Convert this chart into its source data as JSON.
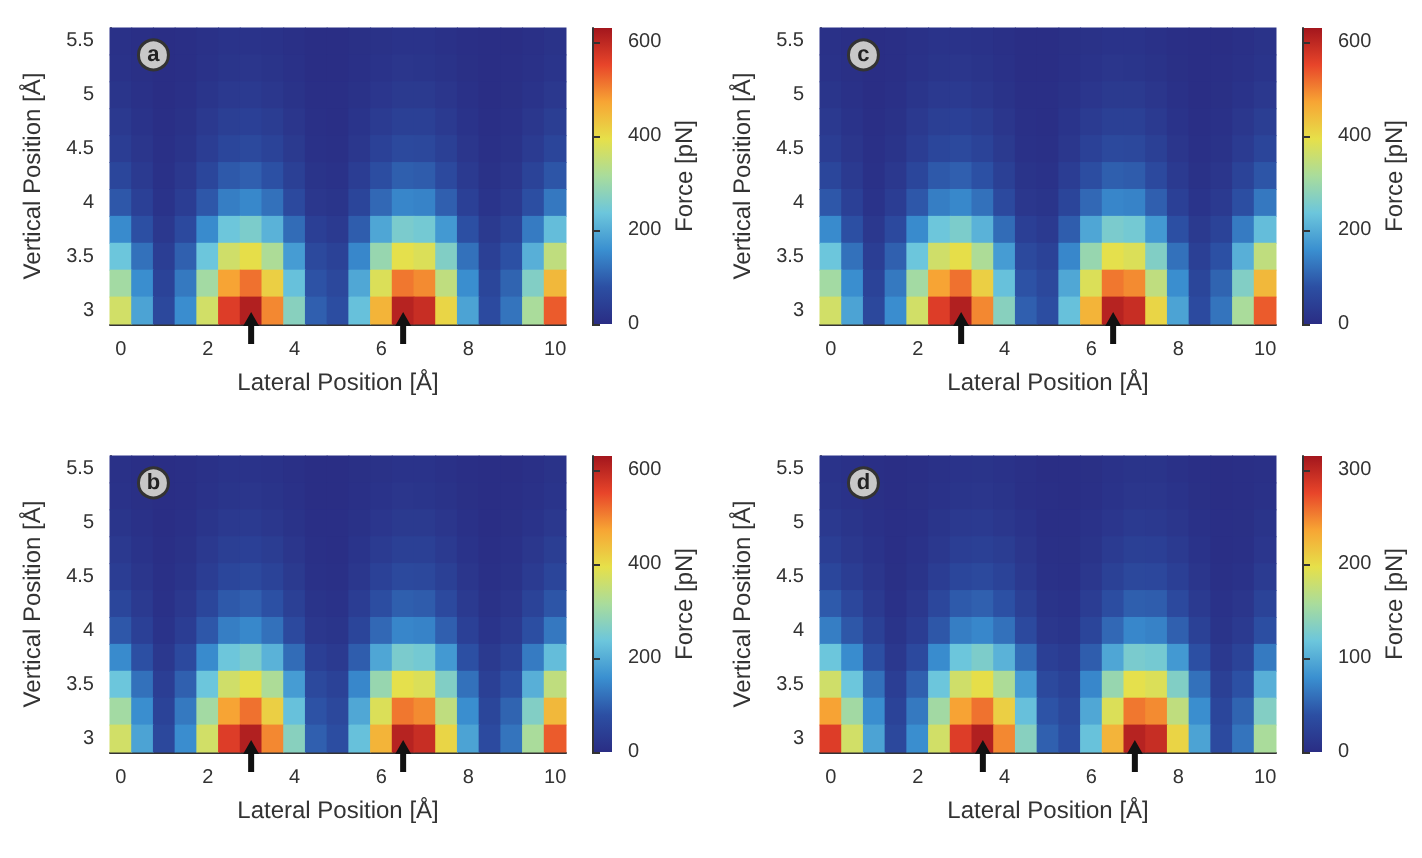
{
  "chart_data": [
    {
      "type": "heatmap",
      "xlabel": "Lateral Position [Å]",
      "ylabel": "Vertical Position [Å]",
      "clabel": "Force [pN]",
      "annotations": [
        "a"
      ],
      "categories": [
        "0",
        null,
        null,
        null,
        "2",
        null,
        null,
        null,
        "4",
        null,
        null,
        null,
        "6",
        null,
        null,
        null,
        "8",
        null,
        null,
        null,
        "10"
      ],
      "y_categories": [
        "5.5",
        null,
        "5",
        null,
        "4.5",
        null,
        "4",
        null,
        "3.5",
        null,
        "3"
      ],
      "clim": [
        0,
        630
      ],
      "cticks": [
        0,
        200,
        400,
        600
      ],
      "cells": [
        [
          9,
          5,
          2,
          4,
          9,
          14,
          15,
          12,
          7,
          2,
          2,
          6,
          11,
          15,
          14,
          10,
          5,
          2,
          3,
          8,
          13
        ],
        [
          12,
          6,
          2,
          5,
          12,
          18,
          20,
          16,
          9,
          3,
          2,
          7,
          15,
          20,
          19,
          13,
          6,
          2,
          4,
          10,
          17
        ],
        [
          18,
          9,
          3,
          8,
          18,
          27,
          30,
          24,
          13,
          5,
          4,
          11,
          22,
          29,
          29,
          20,
          9,
          3,
          6,
          15,
          26
        ],
        [
          27,
          14,
          5,
          11,
          27,
          41,
          45,
          36,
          20,
          7,
          5,
          17,
          33,
          44,
          43,
          30,
          14,
          5,
          9,
          23,
          39
        ],
        [
          38,
          20,
          7,
          16,
          38,
          59,
          64,
          52,
          29,
          10,
          8,
          24,
          47,
          64,
          62,
          43,
          20,
          7,
          13,
          33,
          56
        ],
        [
          59,
          30,
          10,
          25,
          59,
          91,
          99,
          80,
          44,
          16,
          12,
          37,
          73,
          98,
          95,
          66,
          30,
          11,
          20,
          51,
          86
        ],
        [
          89,
          45,
          15,
          38,
          89,
          137,
          149,
          120,
          66,
          24,
          18,
          56,
          110,
          147,
          143,
          99,
          45,
          17,
          30,
          77,
          129
        ],
        [
          153,
          78,
          26,
          65,
          153,
          237,
          257,
          208,
          114,
          42,
          31,
          96,
          190,
          255,
          247,
          172,
          78,
          29,
          52,
          133,
          224
        ],
        [
          236,
          120,
          40,
          100,
          236,
          364,
          396,
          320,
          176,
          64,
          48,
          148,
          292,
          392,
          380,
          264,
          120,
          44,
          80,
          204,
          344
        ],
        [
          307,
          156,
          52,
          130,
          307,
          473,
          515,
          416,
          229,
          83,
          62,
          192,
          380,
          510,
          494,
          343,
          156,
          57,
          104,
          265,
          447
        ],
        [
          366,
          186,
          62,
          155,
          366,
          564,
          614,
          496,
          273,
          99,
          74,
          229,
          453,
          608,
          589,
          409,
          186,
          68,
          124,
          316,
          533
        ]
      ]
    },
    {
      "type": "heatmap",
      "xlabel": "Lateral Position [Å]",
      "ylabel": "Vertical Position [Å]",
      "clabel": "Force [pN]",
      "annotations": [
        "c"
      ],
      "categories": [
        "0",
        null,
        null,
        null,
        "2",
        null,
        null,
        null,
        "4",
        null,
        null,
        null,
        "6",
        null,
        null,
        null,
        "8",
        null,
        null,
        null,
        "10"
      ],
      "y_categories": [
        "5.5",
        null,
        "5",
        null,
        "4.5",
        null,
        "4",
        null,
        "3.5",
        null,
        "3"
      ],
      "clim": [
        0,
        630
      ],
      "cticks": [
        0,
        200,
        400,
        600
      ],
      "cells": [
        [
          9,
          5,
          2,
          4,
          9,
          14,
          15,
          12,
          7,
          2,
          2,
          6,
          11,
          15,
          14,
          10,
          5,
          2,
          3,
          8,
          13
        ],
        [
          12,
          6,
          2,
          5,
          12,
          18,
          20,
          16,
          9,
          3,
          2,
          7,
          15,
          20,
          19,
          13,
          6,
          2,
          4,
          10,
          17
        ],
        [
          18,
          9,
          3,
          8,
          18,
          27,
          30,
          24,
          13,
          5,
          4,
          11,
          22,
          29,
          29,
          20,
          9,
          3,
          6,
          15,
          26
        ],
        [
          27,
          14,
          5,
          11,
          27,
          41,
          45,
          36,
          20,
          7,
          5,
          17,
          33,
          44,
          43,
          30,
          14,
          5,
          9,
          23,
          39
        ],
        [
          38,
          20,
          7,
          16,
          38,
          59,
          64,
          52,
          29,
          10,
          8,
          24,
          47,
          64,
          62,
          43,
          20,
          7,
          13,
          33,
          56
        ],
        [
          59,
          30,
          10,
          25,
          59,
          91,
          99,
          80,
          44,
          16,
          12,
          37,
          73,
          98,
          95,
          66,
          30,
          11,
          20,
          51,
          86
        ],
        [
          89,
          45,
          15,
          38,
          89,
          137,
          149,
          120,
          66,
          24,
          18,
          56,
          110,
          147,
          143,
          99,
          45,
          17,
          30,
          77,
          129
        ],
        [
          153,
          78,
          26,
          65,
          153,
          237,
          257,
          208,
          114,
          42,
          31,
          96,
          190,
          255,
          247,
          172,
          78,
          29,
          52,
          133,
          224
        ],
        [
          236,
          120,
          40,
          100,
          236,
          364,
          396,
          320,
          176,
          64,
          48,
          148,
          292,
          392,
          380,
          264,
          120,
          44,
          80,
          204,
          344
        ],
        [
          307,
          156,
          52,
          130,
          307,
          473,
          515,
          416,
          229,
          83,
          62,
          192,
          380,
          510,
          494,
          343,
          156,
          57,
          104,
          265,
          447
        ],
        [
          366,
          186,
          62,
          155,
          366,
          564,
          614,
          496,
          273,
          99,
          74,
          229,
          453,
          608,
          589,
          409,
          186,
          68,
          124,
          316,
          533
        ]
      ]
    },
    {
      "type": "heatmap",
      "xlabel": "Lateral Position [Å]",
      "ylabel": "Vertical Position [Å]",
      "clabel": "Force [pN]",
      "annotations": [
        "b"
      ],
      "categories": [
        "0",
        null,
        null,
        null,
        "2",
        null,
        null,
        null,
        "4",
        null,
        null,
        null,
        "6",
        null,
        null,
        null,
        "8",
        null,
        null,
        null,
        "10"
      ],
      "y_categories": [
        "5.5",
        null,
        "5",
        null,
        "4.5",
        null,
        "4",
        null,
        "3.5",
        null,
        "3"
      ],
      "clim": [
        0,
        630
      ],
      "cticks": [
        0,
        200,
        400,
        600
      ],
      "cells": [
        [
          9,
          5,
          2,
          4,
          9,
          14,
          15,
          12,
          7,
          2,
          2,
          6,
          11,
          15,
          14,
          10,
          5,
          2,
          3,
          8,
          13
        ],
        [
          12,
          6,
          2,
          5,
          12,
          18,
          20,
          16,
          9,
          3,
          2,
          7,
          15,
          20,
          19,
          13,
          6,
          2,
          4,
          10,
          17
        ],
        [
          18,
          9,
          3,
          8,
          18,
          27,
          30,
          24,
          13,
          5,
          4,
          11,
          22,
          29,
          29,
          20,
          9,
          3,
          6,
          15,
          26
        ],
        [
          27,
          14,
          5,
          11,
          27,
          41,
          45,
          36,
          20,
          7,
          5,
          17,
          33,
          44,
          43,
          30,
          14,
          5,
          9,
          23,
          39
        ],
        [
          38,
          20,
          7,
          16,
          38,
          59,
          64,
          52,
          29,
          10,
          8,
          24,
          47,
          64,
          62,
          43,
          20,
          7,
          13,
          33,
          56
        ],
        [
          59,
          30,
          10,
          25,
          59,
          91,
          99,
          80,
          44,
          16,
          12,
          37,
          73,
          98,
          95,
          66,
          30,
          11,
          20,
          51,
          86
        ],
        [
          89,
          45,
          15,
          38,
          89,
          137,
          149,
          120,
          66,
          24,
          18,
          56,
          110,
          147,
          143,
          99,
          45,
          17,
          30,
          77,
          129
        ],
        [
          153,
          78,
          26,
          65,
          153,
          237,
          257,
          208,
          114,
          42,
          31,
          96,
          190,
          255,
          247,
          172,
          78,
          29,
          52,
          133,
          224
        ],
        [
          236,
          120,
          40,
          100,
          236,
          364,
          396,
          320,
          176,
          64,
          48,
          148,
          292,
          392,
          380,
          264,
          120,
          44,
          80,
          204,
          344
        ],
        [
          307,
          156,
          52,
          130,
          307,
          473,
          515,
          416,
          229,
          83,
          62,
          192,
          380,
          510,
          494,
          343,
          156,
          57,
          104,
          265,
          447
        ],
        [
          366,
          186,
          62,
          155,
          366,
          564,
          614,
          496,
          273,
          99,
          74,
          229,
          453,
          608,
          589,
          409,
          186,
          68,
          124,
          316,
          533
        ]
      ]
    },
    {
      "type": "heatmap",
      "xlabel": "Lateral Position [Å]",
      "ylabel": "Vertical Position [Å]",
      "clabel": "Force [pN]",
      "annotations": [
        "d"
      ],
      "categories": [
        "0",
        null,
        null,
        null,
        "2",
        null,
        null,
        null,
        "4",
        null,
        null,
        null,
        "6",
        null,
        null,
        null,
        "8",
        null,
        null,
        null,
        "10"
      ],
      "y_categories": [
        "5.5",
        null,
        "5",
        null,
        "4.5",
        null,
        "4",
        null,
        "3.5",
        null,
        "3"
      ],
      "clim": [
        0,
        315
      ],
      "cticks": [
        0,
        100,
        200,
        300
      ],
      "cells": [
        [
          7,
          5,
          2,
          1,
          2,
          5,
          7,
          8,
          6,
          4,
          1,
          1,
          3,
          6,
          8,
          8,
          5,
          2,
          1,
          2,
          4
        ],
        [
          9,
          6,
          3,
          1,
          3,
          6,
          9,
          10,
          8,
          4,
          2,
          1,
          4,
          7,
          10,
          10,
          7,
          3,
          1,
          2,
          5
        ],
        [
          14,
          9,
          5,
          2,
          4,
          9,
          14,
          15,
          12,
          7,
          2,
          2,
          6,
          11,
          15,
          14,
          10,
          5,
          2,
          3,
          8
        ],
        [
          20,
          13,
          7,
          2,
          6,
          13,
          20,
          22,
          18,
          10,
          4,
          3,
          8,
          16,
          22,
          21,
          15,
          7,
          2,
          4,
          11
        ],
        [
          29,
          19,
          10,
          3,
          8,
          19,
          29,
          32,
          26,
          14,
          5,
          4,
          12,
          23,
          31,
          30,
          21,
          10,
          4,
          6,
          16
        ],
        [
          46,
          30,
          15,
          5,
          13,
          30,
          46,
          50,
          40,
          22,
          8,
          6,
          19,
          37,
          49,
          48,
          33,
          15,
          6,
          10,
          26
        ],
        [
          68,
          44,
          23,
          8,
          19,
          44,
          68,
          74,
          60,
          33,
          12,
          9,
          28,
          55,
          74,
          71,
          50,
          23,
          8,
          15,
          38
        ],
        [
          118,
          77,
          39,
          13,
          33,
          77,
          118,
          129,
          104,
          57,
          21,
          16,
          48,
          95,
          127,
          124,
          86,
          39,
          14,
          26,
          66
        ],
        [
          182,
          118,
          60,
          20,
          50,
          118,
          182,
          198,
          160,
          88,
          32,
          24,
          74,
          146,
          196,
          190,
          132,
          60,
          22,
          40,
          102
        ],
        [
          237,
          153,
          78,
          26,
          65,
          153,
          237,
          257,
          208,
          114,
          42,
          31,
          96,
          190,
          255,
          247,
          172,
          78,
          29,
          52,
          133
        ],
        [
          282,
          183,
          93,
          31,
          78,
          183,
          282,
          307,
          248,
          136,
          50,
          37,
          115,
          226,
          304,
          295,
          205,
          93,
          34,
          62,
          158
        ]
      ]
    }
  ]
}
